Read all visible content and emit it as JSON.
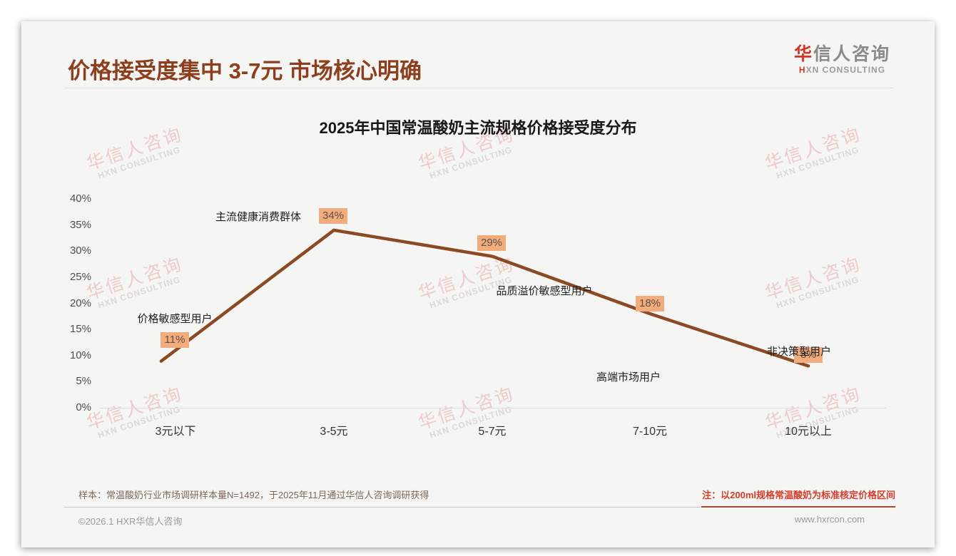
{
  "page": {
    "title": "价格接受度集中 3-7元 市场核心明确",
    "logo": {
      "cn_first": "华",
      "cn_rest": "信人咨询",
      "en_first": "H",
      "en_rest": "XN CONSULTING"
    },
    "watermark": {
      "cn": "华信人咨询",
      "en": "HXN CONSULTING"
    }
  },
  "chart_data": {
    "type": "line",
    "title": "2025年中国常温酸奶主流规格价格接受度分布",
    "categories": [
      "3元以下",
      "3-5元",
      "5-7元",
      "7-10元",
      "10元以上"
    ],
    "values": [
      11,
      34,
      29,
      18,
      8
    ],
    "value_labels": [
      "11%",
      "34%",
      "29%",
      "18%",
      "8%"
    ],
    "annotations": [
      "价格敏感型用户",
      "主流健康消费群体",
      "品质溢价敏感型用户",
      "高端市场用户",
      "非决策型用户"
    ],
    "yticks": [
      "40%",
      "35%",
      "30%",
      "25%",
      "20%",
      "15%",
      "10%",
      "5%",
      "0%"
    ],
    "ylim": [
      0,
      40
    ],
    "ytick_step": 5,
    "grid": "baseline-only",
    "legend": "none",
    "line_color": "#8a4a23",
    "label_bg_color": "#f3ac7c",
    "title_color": "#171717"
  },
  "footer": {
    "sample_note": "样本：常温酸奶行业市场调研样本量N=1492，于2025年11月通过华信人咨询调研获得",
    "red_note": "注：以200ml规格常温酸奶为标准核定价格区间",
    "copyright": "©2026.1 HXR华信人咨询",
    "website": "www.hxrcon.com"
  }
}
